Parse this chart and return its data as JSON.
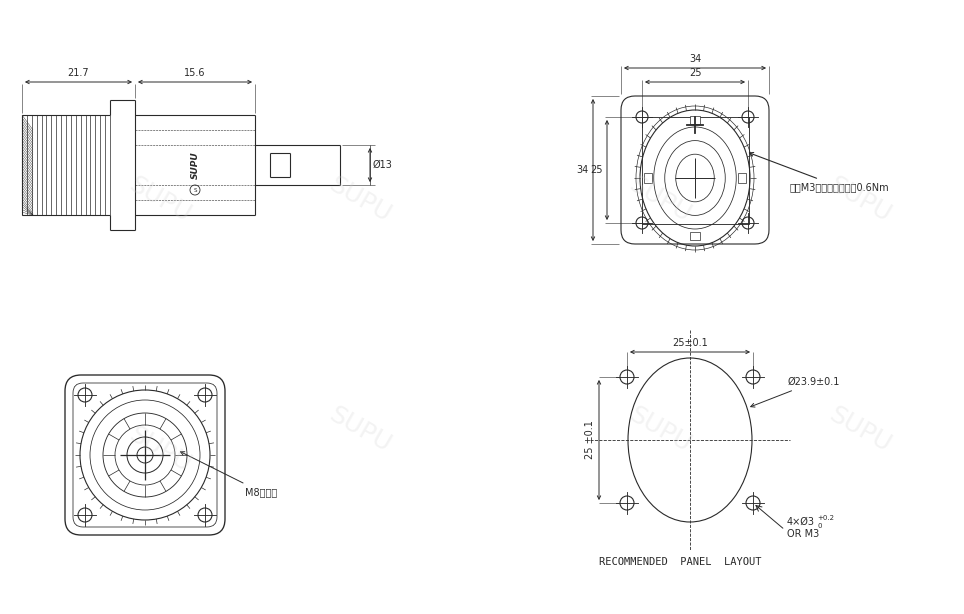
{
  "bg_color": "#ffffff",
  "line_color": "#2a2a2a",
  "dim_color": "#2a2a2a",
  "view_side": {
    "dim_21_7": "21.7",
    "dim_15_6": "15.6",
    "dim_phi13": "Ø13"
  },
  "view_front": {
    "dim_34_h": "34",
    "dim_25_h": "25",
    "dim_34_v": "34",
    "dim_25_v": "25",
    "annotation": "推荐M3组合螺丝，扭知0.6Nm"
  },
  "view_back": {
    "annotation": "M8内螺纹"
  },
  "view_panel": {
    "dim_25_h": "25±0.1",
    "dim_25_v": "25 ±0.1",
    "dim_phi": "Ø23.9±0.1",
    "dim_screw": "4×Ø3",
    "dim_screw_tol": "+0.2",
    "dim_screw_tol2": "0",
    "dim_screw2": "OR M3",
    "title": "RECOMMENDED  PANEL  LAYOUT"
  }
}
